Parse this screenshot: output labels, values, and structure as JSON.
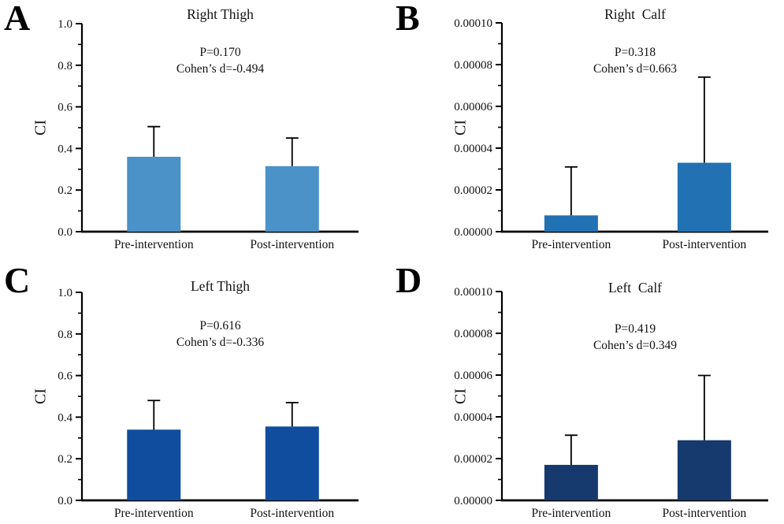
{
  "figure": {
    "background": "#ffffff",
    "axis_color": "#000000",
    "text_color": "#111111"
  },
  "chart_data": [
    {
      "type": "bar",
      "panel": "A",
      "title": "Right Thigh",
      "ylabel": "CI",
      "p_label": "P=0.170",
      "cohen_label": "Cohen’s d=-0.494",
      "categories": [
        "Pre-intervention",
        "Post-intervention"
      ],
      "values": [
        0.36,
        0.315
      ],
      "errors_up": [
        0.145,
        0.135
      ],
      "ylim": [
        0,
        1.0
      ],
      "yticks": [
        0,
        0.2,
        0.4,
        0.6,
        0.8,
        1.0
      ],
      "ytick_labels": [
        "0.0",
        "0.2",
        "0.4",
        "0.6",
        "0.8",
        "1.0"
      ],
      "minor_step": 0.1,
      "bar_color": "#4a92c8",
      "legend": "none",
      "grid": false
    },
    {
      "type": "bar",
      "panel": "B",
      "title": "Right  Calf",
      "ylabel": "CI",
      "p_label": "P=0.318",
      "cohen_label": "Cohen’s d=0.663",
      "categories": [
        "Pre-intervention",
        "Post-intervention"
      ],
      "values": [
        7.8e-06,
        3.3e-05
      ],
      "errors_up": [
        2.32e-05,
        4.1e-05
      ],
      "ylim": [
        0,
        0.0001
      ],
      "yticks": [
        0,
        2e-05,
        4e-05,
        6e-05,
        8e-05,
        0.0001
      ],
      "ytick_labels": [
        "0.00000",
        "0.00002",
        "0.00004",
        "0.00006",
        "0.00008",
        "0.00010"
      ],
      "minor_step": 1e-05,
      "bar_color": "#2271b3",
      "legend": "none",
      "grid": false
    },
    {
      "type": "bar",
      "panel": "C",
      "title": "Left Thigh",
      "ylabel": "CI",
      "p_label": "P=0.616",
      "cohen_label": "Cohen’s d=-0.336",
      "categories": [
        "Pre-intervention",
        "Post-intervention"
      ],
      "values": [
        0.34,
        0.355
      ],
      "errors_up": [
        0.14,
        0.115
      ],
      "ylim": [
        0,
        1.0
      ],
      "yticks": [
        0,
        0.2,
        0.4,
        0.6,
        0.8,
        1.0
      ],
      "ytick_labels": [
        "0.0",
        "0.2",
        "0.4",
        "0.6",
        "0.8",
        "1.0"
      ],
      "minor_step": 0.1,
      "bar_color": "#104d9e",
      "legend": "none",
      "grid": false
    },
    {
      "type": "bar",
      "panel": "D",
      "title": "Left  Calf",
      "ylabel": "CI",
      "p_label": "P=0.419",
      "cohen_label": "Cohen’s d=0.349",
      "categories": [
        "Pre-intervention",
        "Post-intervention"
      ],
      "values": [
        1.7e-05,
        2.88e-05
      ],
      "errors_up": [
        1.42e-05,
        3.1e-05
      ],
      "ylim": [
        0,
        0.0001
      ],
      "yticks": [
        0,
        2e-05,
        4e-05,
        6e-05,
        8e-05,
        0.0001
      ],
      "ytick_labels": [
        "0.00000",
        "0.00002",
        "0.00004",
        "0.00006",
        "0.00008",
        "0.00010"
      ],
      "minor_step": 1e-05,
      "bar_color": "#163a6e",
      "legend": "none",
      "grid": false
    }
  ]
}
